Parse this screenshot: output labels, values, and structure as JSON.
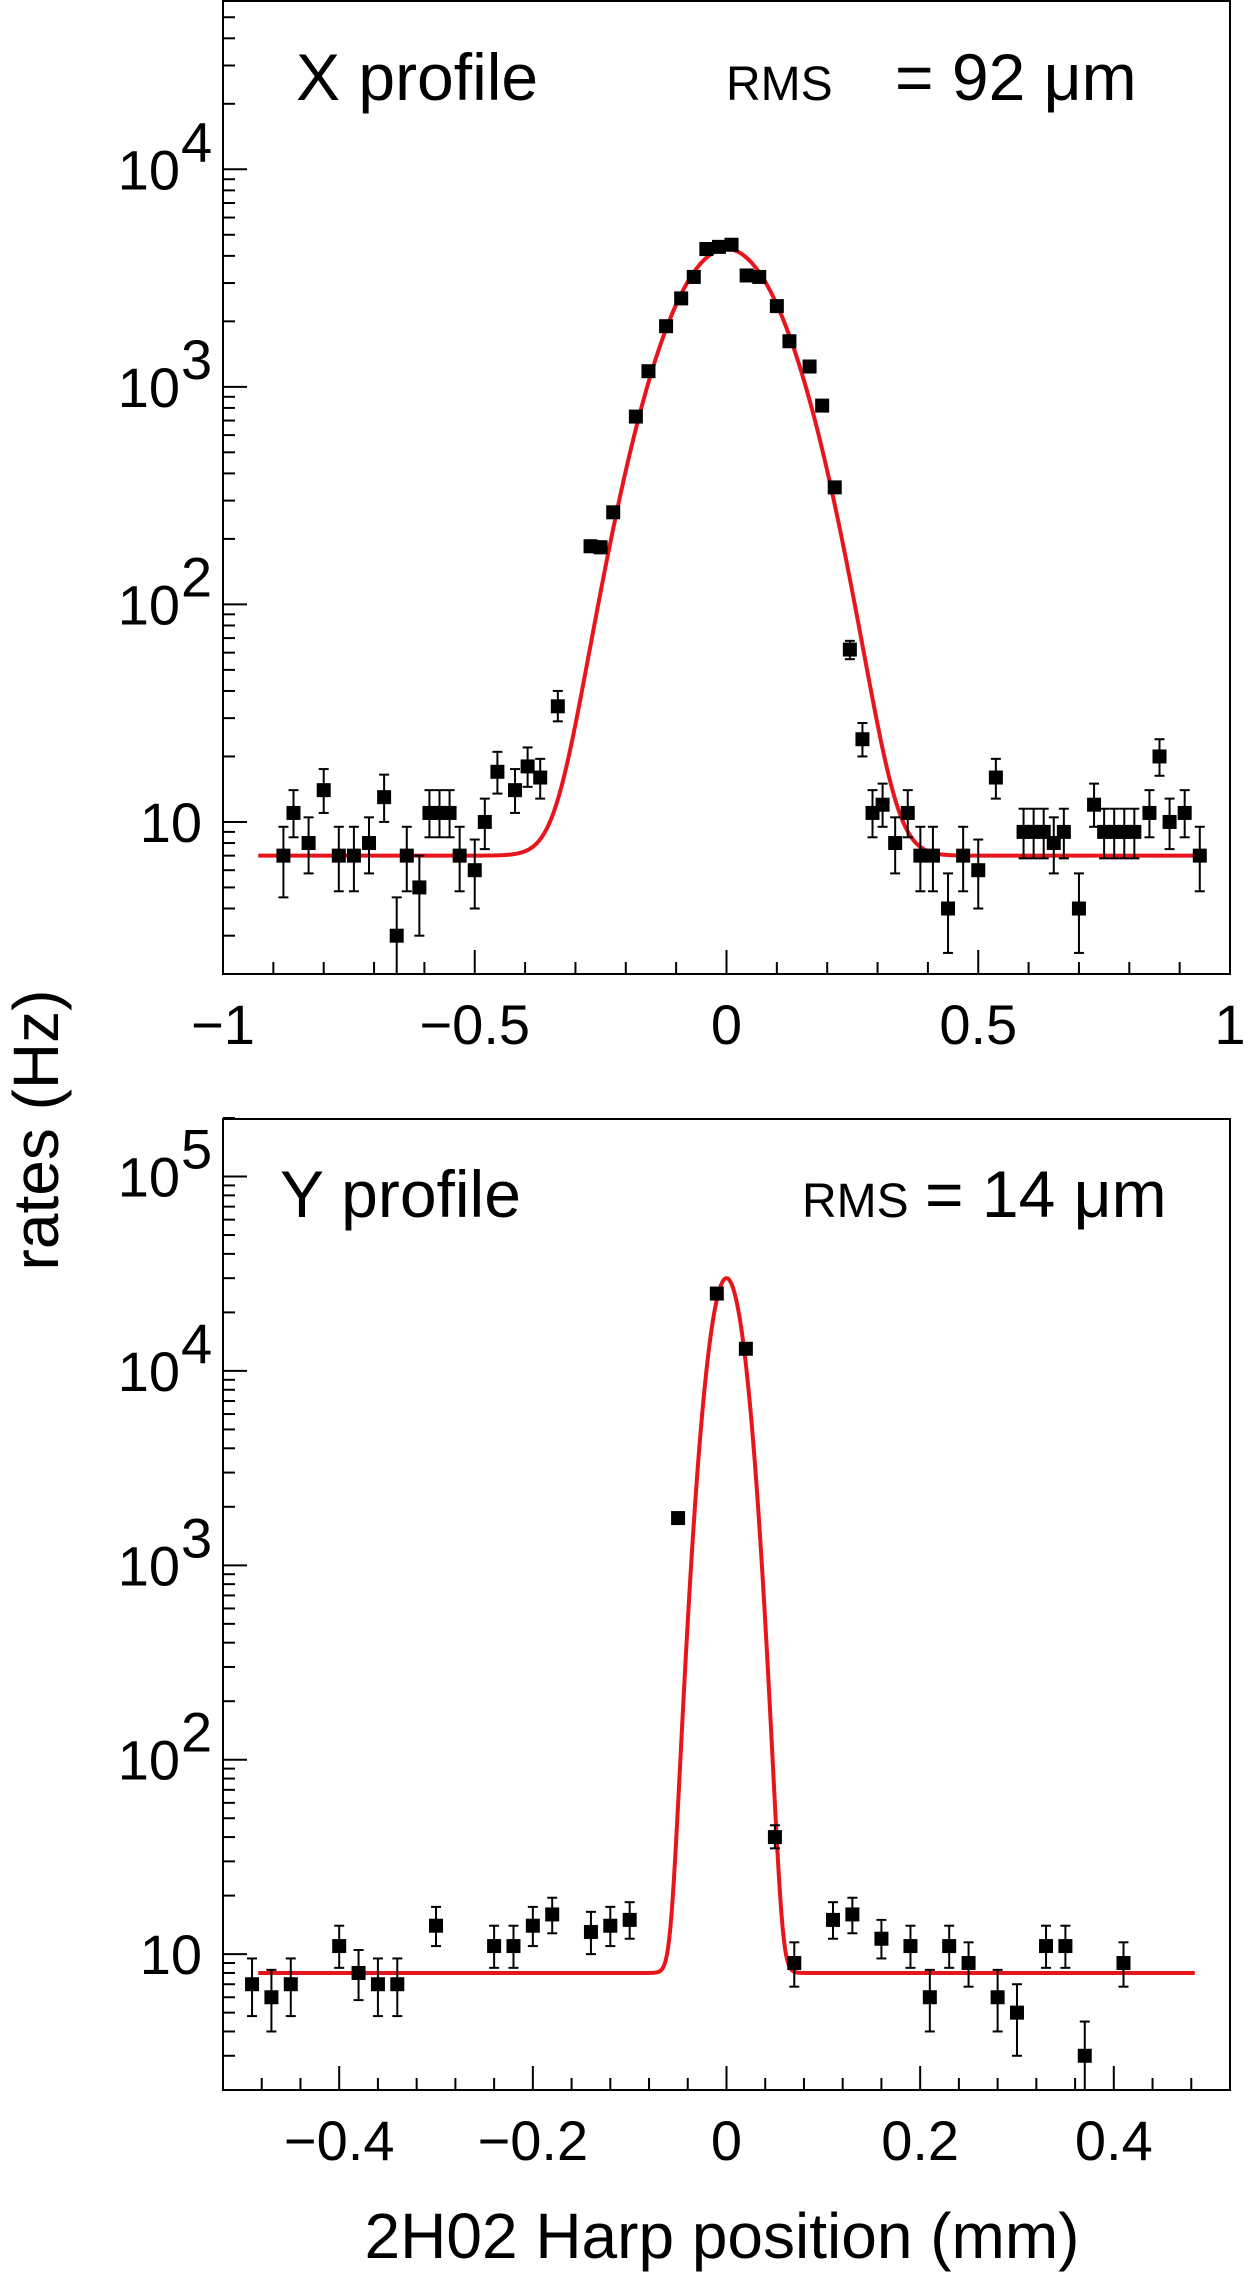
{
  "ylabel": "rates (Hz)",
  "xlabel": "2H02 Harp position (mm)",
  "chart_data": [
    {
      "type": "scatter",
      "panel": "top",
      "label": "X profile",
      "rms_label": "RMS",
      "rms_value": "= 92 μm",
      "xlim": [
        -1,
        1
      ],
      "ylim": [
        2,
        60000
      ],
      "yscale": "log",
      "xticks": [
        -1,
        -0.5,
        0,
        0.5,
        1
      ],
      "xtick_labels": [
        "−1",
        "−0.5",
        "0",
        "0.5",
        "1"
      ],
      "yticks": [
        10,
        100,
        1000,
        10000
      ],
      "ytick_labels": [
        "10",
        "10",
        "10",
        "10"
      ],
      "ytick_exponents": [
        "",
        "2",
        "3",
        "4"
      ],
      "fit": {
        "amplitude": 4300,
        "mean": 0.0,
        "sigma": 0.092,
        "baseline": 7
      },
      "fit_color": "#e8161c",
      "marker_color": "#000000",
      "points": [
        {
          "x": -0.88,
          "y": 7,
          "lo": 4.5,
          "hi": 9.5
        },
        {
          "x": -0.86,
          "y": 11,
          "lo": 8.5,
          "hi": 14
        },
        {
          "x": -0.83,
          "y": 8,
          "lo": 5.8,
          "hi": 10.5
        },
        {
          "x": -0.8,
          "y": 14,
          "lo": 11,
          "hi": 17.5
        },
        {
          "x": -0.77,
          "y": 7,
          "lo": 4.8,
          "hi": 9.5
        },
        {
          "x": -0.74,
          "y": 7,
          "lo": 4.8,
          "hi": 9.5
        },
        {
          "x": -0.71,
          "y": 8,
          "lo": 5.8,
          "hi": 10.5
        },
        {
          "x": -0.68,
          "y": 13,
          "lo": 10,
          "hi": 16.5
        },
        {
          "x": -0.655,
          "y": 3,
          "lo": 2,
          "hi": 4.5
        },
        {
          "x": -0.635,
          "y": 7,
          "lo": 4.8,
          "hi": 9.5
        },
        {
          "x": -0.61,
          "y": 5,
          "lo": 3,
          "hi": 7
        },
        {
          "x": -0.59,
          "y": 11,
          "lo": 8.5,
          "hi": 14
        },
        {
          "x": -0.57,
          "y": 11,
          "lo": 8.5,
          "hi": 14
        },
        {
          "x": -0.55,
          "y": 11,
          "lo": 8.5,
          "hi": 14
        },
        {
          "x": -0.53,
          "y": 7,
          "lo": 4.8,
          "hi": 9.5
        },
        {
          "x": -0.5,
          "y": 6,
          "lo": 4,
          "hi": 8.3
        },
        {
          "x": -0.48,
          "y": 10,
          "lo": 7.5,
          "hi": 12.8
        },
        {
          "x": -0.455,
          "y": 17,
          "lo": 13.5,
          "hi": 21
        },
        {
          "x": -0.42,
          "y": 14,
          "lo": 11,
          "hi": 17.5
        },
        {
          "x": -0.395,
          "y": 18,
          "lo": 14.5,
          "hi": 22
        },
        {
          "x": -0.37,
          "y": 16,
          "lo": 12.8,
          "hi": 19.5
        },
        {
          "x": -0.335,
          "y": 34,
          "lo": 29,
          "hi": 40
        },
        {
          "x": -0.27,
          "y": 185,
          "lo": 174,
          "hi": 197
        },
        {
          "x": -0.25,
          "y": 183,
          "lo": 172,
          "hi": 195
        },
        {
          "x": -0.225,
          "y": 265,
          "lo": 252,
          "hi": 280
        },
        {
          "x": -0.18,
          "y": 730,
          "lo": 710,
          "hi": 752
        },
        {
          "x": -0.155,
          "y": 1180,
          "lo": 1155,
          "hi": 1205
        },
        {
          "x": -0.12,
          "y": 1900,
          "lo": 1870,
          "hi": 1930
        },
        {
          "x": -0.09,
          "y": 2550,
          "lo": 2520,
          "hi": 2580
        },
        {
          "x": -0.065,
          "y": 3200,
          "lo": 3165,
          "hi": 3235
        },
        {
          "x": -0.04,
          "y": 4300,
          "lo": 4260,
          "hi": 4340
        },
        {
          "x": -0.015,
          "y": 4400,
          "lo": 4360,
          "hi": 4440
        },
        {
          "x": 0.01,
          "y": 4500,
          "lo": 4460,
          "hi": 4540
        },
        {
          "x": 0.04,
          "y": 3250,
          "lo": 3215,
          "hi": 3285
        },
        {
          "x": 0.065,
          "y": 3200,
          "lo": 3165,
          "hi": 3235
        },
        {
          "x": 0.1,
          "y": 2350,
          "lo": 2320,
          "hi": 2380
        },
        {
          "x": 0.125,
          "y": 1620,
          "lo": 1595,
          "hi": 1645
        },
        {
          "x": 0.165,
          "y": 1240,
          "lo": 1215,
          "hi": 1265
        },
        {
          "x": 0.19,
          "y": 820,
          "lo": 800,
          "hi": 840
        },
        {
          "x": 0.215,
          "y": 345,
          "lo": 331,
          "hi": 360
        },
        {
          "x": 0.245,
          "y": 62,
          "lo": 56,
          "hi": 68
        },
        {
          "x": 0.27,
          "y": 24,
          "lo": 20,
          "hi": 28.5
        },
        {
          "x": 0.29,
          "y": 11,
          "lo": 8.5,
          "hi": 14
        },
        {
          "x": 0.31,
          "y": 12,
          "lo": 9.5,
          "hi": 15
        },
        {
          "x": 0.335,
          "y": 8,
          "lo": 5.8,
          "hi": 10.5
        },
        {
          "x": 0.36,
          "y": 11,
          "lo": 8.5,
          "hi": 14
        },
        {
          "x": 0.385,
          "y": 7,
          "lo": 4.8,
          "hi": 9.5
        },
        {
          "x": 0.41,
          "y": 7,
          "lo": 4.8,
          "hi": 9.5
        },
        {
          "x": 0.44,
          "y": 4,
          "lo": 2.5,
          "hi": 5.8
        },
        {
          "x": 0.47,
          "y": 7,
          "lo": 4.8,
          "hi": 9.5
        },
        {
          "x": 0.5,
          "y": 6,
          "lo": 4,
          "hi": 8.3
        },
        {
          "x": 0.535,
          "y": 16,
          "lo": 12.8,
          "hi": 19.5
        },
        {
          "x": 0.59,
          "y": 9,
          "lo": 6.8,
          "hi": 11.5
        },
        {
          "x": 0.61,
          "y": 9,
          "lo": 6.8,
          "hi": 11.5
        },
        {
          "x": 0.63,
          "y": 9,
          "lo": 6.8,
          "hi": 11.5
        },
        {
          "x": 0.65,
          "y": 8,
          "lo": 5.8,
          "hi": 10.5
        },
        {
          "x": 0.67,
          "y": 9,
          "lo": 6.8,
          "hi": 11.5
        },
        {
          "x": 0.7,
          "y": 4,
          "lo": 2.5,
          "hi": 5.8
        },
        {
          "x": 0.73,
          "y": 12,
          "lo": 9.5,
          "hi": 15
        },
        {
          "x": 0.75,
          "y": 9,
          "lo": 6.8,
          "hi": 11.5
        },
        {
          "x": 0.77,
          "y": 9,
          "lo": 6.8,
          "hi": 11.5
        },
        {
          "x": 0.79,
          "y": 9,
          "lo": 6.8,
          "hi": 11.5
        },
        {
          "x": 0.81,
          "y": 9,
          "lo": 6.8,
          "hi": 11.5
        },
        {
          "x": 0.84,
          "y": 11,
          "lo": 8.5,
          "hi": 14
        },
        {
          "x": 0.86,
          "y": 20,
          "lo": 16.3,
          "hi": 24
        },
        {
          "x": 0.88,
          "y": 10,
          "lo": 7.5,
          "hi": 12.8
        },
        {
          "x": 0.91,
          "y": 11,
          "lo": 8.5,
          "hi": 14
        },
        {
          "x": 0.94,
          "y": 7,
          "lo": 4.8,
          "hi": 9.5
        }
      ]
    },
    {
      "type": "scatter",
      "panel": "bottom",
      "label": "Y profile",
      "rms_label": "RMS",
      "rms_value": "= 14 μm",
      "xlim": [
        -0.52,
        0.52
      ],
      "ylim": [
        2,
        200000
      ],
      "yscale": "log",
      "xticks": [
        -0.4,
        -0.2,
        0,
        0.2,
        0.4
      ],
      "xtick_labels": [
        "−0.4",
        "−0.2",
        "0",
        "0.2",
        "0.4"
      ],
      "yticks": [
        10,
        100,
        1000,
        10000,
        100000
      ],
      "ytick_labels": [
        "10",
        "10",
        "10",
        "10",
        "10"
      ],
      "ytick_exponents": [
        "",
        "2",
        "3",
        "4",
        "5"
      ],
      "fit": {
        "amplitude": 30000,
        "mean": 0.0,
        "sigma": 0.014,
        "baseline": 8
      },
      "fit_color": "#e8161c",
      "marker_color": "#000000",
      "points": [
        {
          "x": -0.49,
          "y": 7,
          "lo": 4.8,
          "hi": 9.5
        },
        {
          "x": -0.47,
          "y": 6,
          "lo": 4,
          "hi": 8.3
        },
        {
          "x": -0.45,
          "y": 7,
          "lo": 4.8,
          "hi": 9.5
        },
        {
          "x": -0.4,
          "y": 11,
          "lo": 8.5,
          "hi": 14
        },
        {
          "x": -0.38,
          "y": 8,
          "lo": 5.8,
          "hi": 10.5
        },
        {
          "x": -0.36,
          "y": 7,
          "lo": 4.8,
          "hi": 9.5
        },
        {
          "x": -0.34,
          "y": 7,
          "lo": 4.8,
          "hi": 9.5
        },
        {
          "x": -0.3,
          "y": 14,
          "lo": 11,
          "hi": 17.5
        },
        {
          "x": -0.24,
          "y": 11,
          "lo": 8.5,
          "hi": 14
        },
        {
          "x": -0.22,
          "y": 11,
          "lo": 8.5,
          "hi": 14
        },
        {
          "x": -0.2,
          "y": 14,
          "lo": 11,
          "hi": 17.5
        },
        {
          "x": -0.18,
          "y": 16,
          "lo": 12.8,
          "hi": 19.5
        },
        {
          "x": -0.14,
          "y": 13,
          "lo": 10,
          "hi": 16.5
        },
        {
          "x": -0.12,
          "y": 14,
          "lo": 11,
          "hi": 17.5
        },
        {
          "x": -0.1,
          "y": 15,
          "lo": 12,
          "hi": 18.5
        },
        {
          "x": -0.05,
          "y": 1750,
          "lo": 1720,
          "hi": 1780
        },
        {
          "x": -0.01,
          "y": 25000,
          "lo": 24800,
          "hi": 25200
        },
        {
          "x": 0.02,
          "y": 13000,
          "lo": 12850,
          "hi": 13150
        },
        {
          "x": 0.05,
          "y": 40,
          "lo": 35,
          "hi": 46
        },
        {
          "x": 0.07,
          "y": 9,
          "lo": 6.8,
          "hi": 11.5
        },
        {
          "x": 0.11,
          "y": 15,
          "lo": 12,
          "hi": 18.5
        },
        {
          "x": 0.13,
          "y": 16,
          "lo": 12.8,
          "hi": 19.5
        },
        {
          "x": 0.16,
          "y": 12,
          "lo": 9.5,
          "hi": 15
        },
        {
          "x": 0.19,
          "y": 11,
          "lo": 8.5,
          "hi": 14
        },
        {
          "x": 0.21,
          "y": 6,
          "lo": 4,
          "hi": 8.3
        },
        {
          "x": 0.23,
          "y": 11,
          "lo": 8.5,
          "hi": 14
        },
        {
          "x": 0.25,
          "y": 9,
          "lo": 6.8,
          "hi": 11.5
        },
        {
          "x": 0.28,
          "y": 6,
          "lo": 4,
          "hi": 8.3
        },
        {
          "x": 0.3,
          "y": 5,
          "lo": 3,
          "hi": 7
        },
        {
          "x": 0.33,
          "y": 11,
          "lo": 8.5,
          "hi": 14
        },
        {
          "x": 0.35,
          "y": 11,
          "lo": 8.5,
          "hi": 14
        },
        {
          "x": 0.37,
          "y": 3,
          "lo": 2,
          "hi": 4.5
        },
        {
          "x": 0.41,
          "y": 9,
          "lo": 6.8,
          "hi": 11.5
        }
      ]
    }
  ]
}
